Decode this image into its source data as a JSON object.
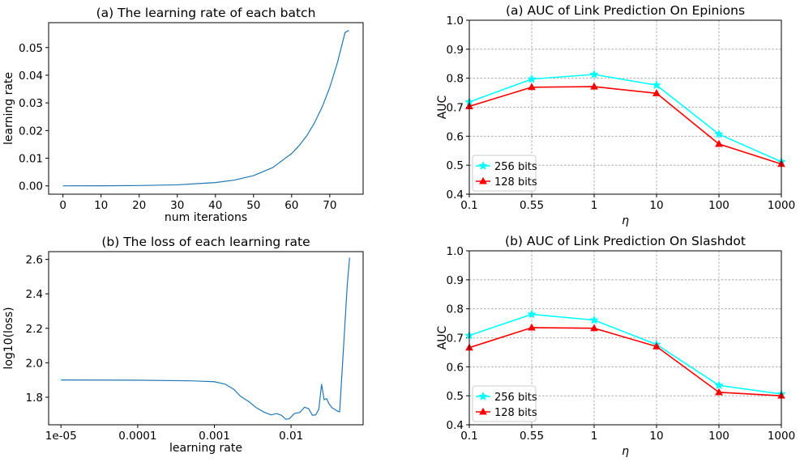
{
  "chart_data": [
    {
      "id": "lr-batch",
      "type": "line",
      "title": "(a) The learning rate of each batch",
      "xlabel": "num iterations",
      "ylabel": "learning rate",
      "xlim": [
        -3.75,
        78.75
      ],
      "ylim": [
        -0.003,
        0.059
      ],
      "xticks": [
        0,
        10,
        20,
        30,
        40,
        50,
        60,
        70
      ],
      "xtick_labels": [
        "0",
        "10",
        "20",
        "30",
        "40",
        "50",
        "60",
        "70"
      ],
      "yticks": [
        0,
        0.01,
        0.02,
        0.03,
        0.04,
        0.05
      ],
      "ytick_labels": [
        "0.00",
        "0.01",
        "0.02",
        "0.03",
        "0.04",
        "0.05"
      ],
      "grid": false,
      "series": [
        {
          "color": "#1f77b4",
          "x": [
            0,
            10,
            20,
            30,
            40,
            45,
            50,
            55,
            60,
            62,
            64,
            66,
            68,
            70,
            72,
            74,
            75
          ],
          "y": [
            1e-05,
            4e-05,
            0.00012,
            0.00038,
            0.0012,
            0.0021,
            0.0037,
            0.0066,
            0.0117,
            0.0146,
            0.0182,
            0.0228,
            0.0285,
            0.0356,
            0.0445,
            0.0554,
            0.0562
          ]
        }
      ]
    },
    {
      "id": "loss-lr",
      "type": "line",
      "title": "(b) The loss of each learning rate",
      "xlabel": "learning rate",
      "ylabel": "log10(loss)",
      "xscale": "log",
      "xlim": [
        6.9e-06,
        0.087
      ],
      "ylim": [
        1.64,
        2.645
      ],
      "xticks": [
        1e-05,
        0.0001,
        0.001,
        0.01
      ],
      "xtick_labels": [
        "1e-05",
        "0.0001",
        "0.001",
        "0.01"
      ],
      "yticks": [
        1.8,
        2.0,
        2.2,
        2.4,
        2.6
      ],
      "ytick_labels": [
        "1.8",
        "2.0",
        "2.2",
        "2.4",
        "2.6"
      ],
      "grid": false,
      "series": [
        {
          "color": "#1f77b4",
          "x": [
            1e-05,
            0.0001,
            0.0005,
            0.001,
            0.0014,
            0.0018,
            0.0022,
            0.0028,
            0.0035,
            0.0045,
            0.0055,
            0.0065,
            0.0075,
            0.0085,
            0.0095,
            0.011,
            0.013,
            0.015,
            0.017,
            0.019,
            0.021,
            0.023,
            0.025,
            0.027,
            0.029,
            0.031,
            0.034,
            0.037,
            0.04,
            0.043,
            0.047,
            0.05,
            0.054,
            0.058
          ],
          "y": [
            1.9,
            1.899,
            1.895,
            1.89,
            1.875,
            1.845,
            1.805,
            1.775,
            1.74,
            1.712,
            1.698,
            1.705,
            1.695,
            1.672,
            1.675,
            1.705,
            1.712,
            1.742,
            1.733,
            1.695,
            1.698,
            1.73,
            1.875,
            1.785,
            1.792,
            1.765,
            1.74,
            1.73,
            1.72,
            1.715,
            2.0,
            2.2,
            2.45,
            2.61
          ]
        }
      ]
    },
    {
      "id": "auc-epinions",
      "type": "line",
      "title": "(a) AUC of Link Prediction On Epinions",
      "xlabel": "η",
      "ylabel": "AUC",
      "categories": [
        "0.1",
        "0.55",
        "1",
        "10",
        "100",
        "1000"
      ],
      "ylim": [
        0.4,
        1.0
      ],
      "yticks": [
        0.4,
        0.5,
        0.6,
        0.7,
        0.8,
        0.9,
        1.0
      ],
      "ytick_labels": [
        "0.4",
        "0.5",
        "0.6",
        "0.7",
        "0.8",
        "0.9",
        "1.0"
      ],
      "grid": true,
      "legend": "lower-left",
      "series": [
        {
          "name": "256 bits",
          "color": "#00ffff",
          "marker": "star",
          "values": [
            0.718,
            0.797,
            0.813,
            0.776,
            0.607,
            0.512
          ]
        },
        {
          "name": "128 bits",
          "color": "#ff0000",
          "marker": "triangle",
          "values": [
            0.703,
            0.769,
            0.771,
            0.748,
            0.573,
            0.504
          ]
        }
      ]
    },
    {
      "id": "auc-slashdot",
      "type": "line",
      "title": "(b) AUC of Link Prediction On Slashdot",
      "xlabel": "η",
      "ylabel": "AUC",
      "categories": [
        "0.1",
        "0.55",
        "1",
        "10",
        "100",
        "1000"
      ],
      "ylim": [
        0.4,
        1.0
      ],
      "yticks": [
        0.4,
        0.5,
        0.6,
        0.7,
        0.8,
        0.9,
        1.0
      ],
      "ytick_labels": [
        "0.4",
        "0.5",
        "0.6",
        "0.7",
        "0.8",
        "0.9",
        "1.0"
      ],
      "grid": true,
      "legend": "lower-left",
      "series": [
        {
          "name": "256 bits",
          "color": "#00ffff",
          "marker": "star",
          "values": [
            0.708,
            0.781,
            0.761,
            0.677,
            0.536,
            0.506
          ]
        },
        {
          "name": "128 bits",
          "color": "#ff0000",
          "marker": "triangle",
          "values": [
            0.666,
            0.735,
            0.733,
            0.67,
            0.512,
            0.5
          ]
        }
      ]
    }
  ]
}
